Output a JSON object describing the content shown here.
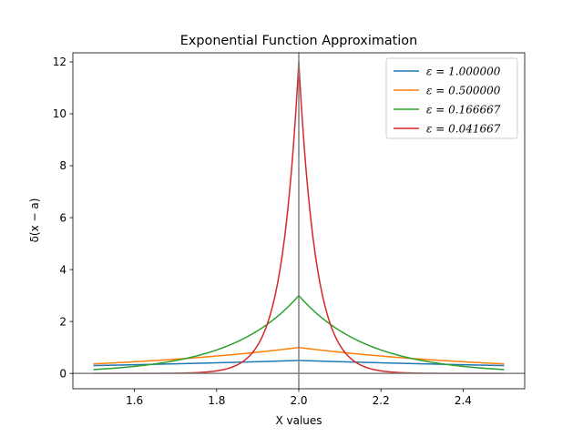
{
  "chart_data": {
    "type": "line",
    "title": "Exponential Function Approximation",
    "xlabel": "X values",
    "ylabel": "δ(x − a)",
    "xlim": [
      1.45,
      2.55
    ],
    "ylim": [
      -0.59,
      12.35
    ],
    "xticks": [
      1.6,
      1.8,
      2.0,
      2.2,
      2.4
    ],
    "xtick_labels": [
      "1.6",
      "1.8",
      "2.0",
      "2.2",
      "2.4"
    ],
    "yticks": [
      0,
      2,
      4,
      6,
      8,
      10,
      12
    ],
    "ytick_labels": [
      "0",
      "2",
      "4",
      "6",
      "8",
      "10",
      "12"
    ],
    "grid": false,
    "legend_position": "upper-right",
    "a": 2.0,
    "x_range": [
      1.5,
      2.5
    ],
    "vline_x": 2.0,
    "hline_y": 0,
    "reference_line_color": "#808080",
    "series": [
      {
        "name": "ε = 1.000000",
        "epsilon": 1.0,
        "color": "#1f77b4",
        "legend_label": "ε = 1.000000"
      },
      {
        "name": "ε = 0.500000",
        "epsilon": 0.5,
        "color": "#ff7f0e",
        "legend_label": "ε = 0.500000"
      },
      {
        "name": "ε = 0.166667",
        "epsilon": 0.166667,
        "color": "#2ca02c",
        "legend_label": "ε = 0.166667"
      },
      {
        "name": "ε = 0.041667",
        "epsilon": 0.041667,
        "color": "#d62728",
        "legend_label": "ε = 0.041667"
      }
    ]
  }
}
